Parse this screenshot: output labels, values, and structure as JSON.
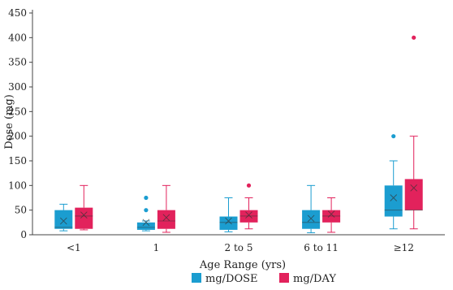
{
  "chart_data": {
    "type": "box",
    "xlabel": "Age Range (yrs)",
    "ylabel": "Dose (mg)",
    "ylim": [
      0,
      450
    ],
    "yticks": [
      0,
      50,
      100,
      150,
      200,
      250,
      300,
      350,
      400,
      450
    ],
    "categories": [
      "<1",
      "1",
      "2 to 5",
      "6 to 11",
      "≥12"
    ],
    "legend_position": "bottom",
    "grid": false,
    "series": [
      {
        "name": "mg/DOSE",
        "color": "#1b9dd0",
        "boxes": [
          {
            "min": 8,
            "q1": 12,
            "median": 15,
            "q3": 50,
            "max": 62,
            "mean": 28,
            "outliers": []
          },
          {
            "min": 8,
            "q1": 10,
            "median": 15,
            "q3": 25,
            "max": 28,
            "mean": 25,
            "outliers": [
              50,
              75
            ]
          },
          {
            "min": 6,
            "q1": 10,
            "median": 25,
            "q3": 37,
            "max": 75,
            "mean": 28,
            "outliers": []
          },
          {
            "min": 4,
            "q1": 12,
            "median": 25,
            "q3": 50,
            "max": 100,
            "mean": 33,
            "outliers": []
          },
          {
            "min": 12,
            "q1": 37,
            "median": 50,
            "q3": 100,
            "max": 150,
            "mean": 75,
            "outliers": [
              200
            ]
          }
        ]
      },
      {
        "name": "mg/DAY",
        "color": "#e2225c",
        "boxes": [
          {
            "min": 10,
            "q1": 12,
            "median": 38,
            "q3": 55,
            "max": 100,
            "mean": 40,
            "outliers": []
          },
          {
            "min": 5,
            "q1": 12,
            "median": 28,
            "q3": 50,
            "max": 100,
            "mean": 35,
            "outliers": []
          },
          {
            "min": 12,
            "q1": 25,
            "median": 38,
            "q3": 50,
            "max": 75,
            "mean": 40,
            "outliers": [
              100
            ]
          },
          {
            "min": 5,
            "q1": 25,
            "median": 38,
            "q3": 50,
            "max": 75,
            "mean": 42,
            "outliers": []
          },
          {
            "min": 12,
            "q1": 50,
            "median": 50,
            "q3": 113,
            "max": 200,
            "mean": 95,
            "outliers": [
              400
            ]
          }
        ]
      }
    ]
  }
}
